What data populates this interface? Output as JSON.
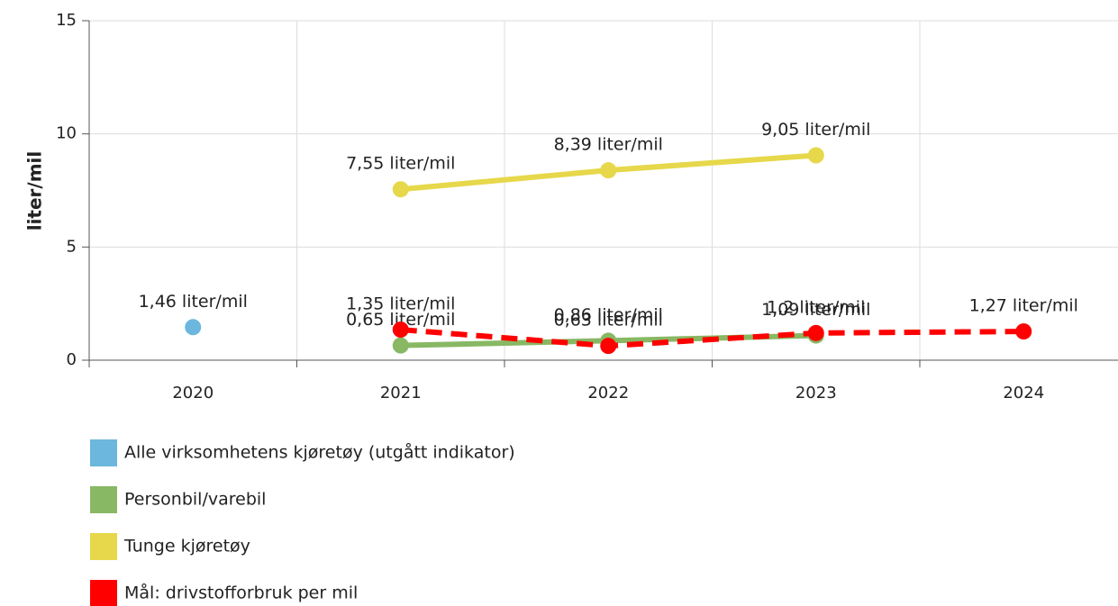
{
  "chart_data": {
    "type": "line",
    "y_label": "liter/mil",
    "categories": [
      "2020",
      "2021",
      "2022",
      "2023",
      "2024"
    ],
    "ylim": [
      0,
      15
    ],
    "yticks": [
      0,
      5,
      10,
      15
    ],
    "grid": true,
    "series": [
      {
        "name": "Alle virksomhetens kjøretøy (utgått indikator)",
        "color": "#6bb7dd",
        "values": [
          1.46,
          null,
          null,
          null,
          null
        ],
        "value_labels": [
          "1,46 liter/mil",
          null,
          null,
          null,
          null
        ]
      },
      {
        "name": "Personbil/varebil",
        "color": "#88b863",
        "values": [
          null,
          0.65,
          0.86,
          1.09,
          null
        ],
        "value_labels": [
          null,
          "0,65 liter/mil",
          "0,86 liter/mil",
          "1,09 liter/mil",
          null
        ]
      },
      {
        "name": "Tunge kjøretøy",
        "color": "#e6d84a",
        "values": [
          null,
          7.55,
          8.39,
          9.05,
          null
        ],
        "value_labels": [
          null,
          "7,55 liter/mil",
          "8,39 liter/mil",
          "9,05 liter/mil",
          null
        ]
      },
      {
        "name": "Mål: drivstofforbruk per mil",
        "color": "#ff0000",
        "dashed": true,
        "values": [
          null,
          1.35,
          0.63,
          1.2,
          1.27
        ],
        "value_labels": [
          null,
          "1,35 liter/mil",
          "0,63 liter/mil",
          "1,2 liter/mil",
          "1,27 liter/mil"
        ]
      }
    ]
  }
}
